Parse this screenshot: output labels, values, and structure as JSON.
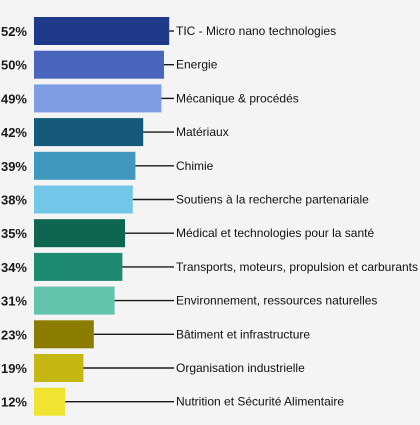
{
  "chart_data": {
    "type": "bar",
    "orientation": "horizontal",
    "title": "",
    "xlabel": "",
    "ylabel": "",
    "xlim": [
      0,
      100
    ],
    "grid": false,
    "legend": "none",
    "value_suffix": "%",
    "categories": [
      "TIC - Micro nano technologies",
      "Energie",
      "Mécanique & procédés",
      "Matériaux",
      "Chimie",
      "Soutiens à la recherche partenariale",
      "Médical et technologies pour la santé",
      "Transports, moteurs, propulsion et carburants",
      "Environnement, ressources naturelles",
      "Bâtiment et infrastructure",
      "Organisation industrielle",
      "Nutrition et Sécurité Alimentaire"
    ],
    "values": [
      52,
      50,
      49,
      42,
      39,
      38,
      35,
      34,
      31,
      23,
      19,
      12
    ],
    "value_labels": [
      "52%",
      "50%",
      "49%",
      "42%",
      "39%",
      "38%",
      "35%",
      "34%",
      "31%",
      "23%",
      "19%",
      "12%"
    ],
    "colors": [
      "#1f3a8a",
      "#4a66bc",
      "#7d9ce3",
      "#155a78",
      "#3f97bd",
      "#72c7e8",
      "#0e6651",
      "#1f8a72",
      "#63c3aa",
      "#8b7c00",
      "#c6b614",
      "#f0e430"
    ],
    "background": "#f4f4f4"
  }
}
